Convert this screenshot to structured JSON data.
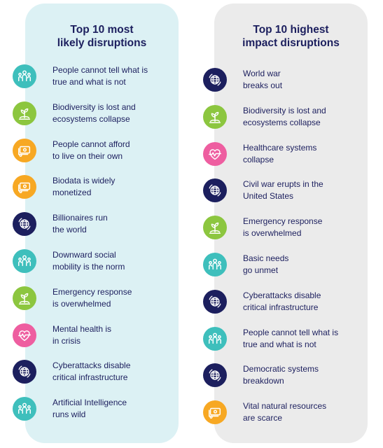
{
  "left": {
    "title_line1": "Top 10 most",
    "title_line2": "likely disruptions",
    "items": [
      {
        "line1": "People cannot tell what is",
        "line2": "true and what is not",
        "icon": "people-icon",
        "color": "#3ebfbc"
      },
      {
        "line1": "Biodiversity is lost and",
        "line2": "ecosystems collapse",
        "icon": "plant-icon",
        "color": "#8cc63f"
      },
      {
        "line1": "People cannot afford",
        "line2": "to live on their own",
        "icon": "money-icon",
        "color": "#f7a823"
      },
      {
        "line1": "Biodata is widely",
        "line2": "monetized",
        "icon": "money-icon",
        "color": "#f7a823"
      },
      {
        "line1": "Billionaires run",
        "line2": "the world",
        "icon": "globe-icon",
        "color": "#1c1f5e"
      },
      {
        "line1": "Downward social",
        "line2": "mobility is the norm",
        "icon": "people-icon",
        "color": "#3ebfbc"
      },
      {
        "line1": "Emergency response",
        "line2": "is overwhelmed",
        "icon": "plant-icon",
        "color": "#8cc63f"
      },
      {
        "line1": "Mental health is",
        "line2": "in crisis",
        "icon": "heart-icon",
        "color": "#ee5ea0"
      },
      {
        "line1": "Cyberattacks disable",
        "line2": "critical infrastructure",
        "icon": "globe-icon",
        "color": "#1c1f5e"
      },
      {
        "line1": "Artificial Intelligence",
        "line2": "runs wild",
        "icon": "people-icon",
        "color": "#3ebfbc"
      }
    ]
  },
  "right": {
    "title_line1": "Top 10 highest",
    "title_line2": "impact disruptions",
    "items": [
      {
        "line1": "World war",
        "line2": "breaks out",
        "icon": "globe-icon",
        "color": "#1c1f5e"
      },
      {
        "line1": "Biodiversity is lost and",
        "line2": "ecosystems collapse",
        "icon": "plant-icon",
        "color": "#8cc63f"
      },
      {
        "line1": "Healthcare systems",
        "line2": "collapse",
        "icon": "heart-icon",
        "color": "#ee5ea0"
      },
      {
        "line1": "Civil war erupts in the",
        "line2": "United States",
        "icon": "globe-icon",
        "color": "#1c1f5e"
      },
      {
        "line1": "Emergency response",
        "line2": "is overwhelmed",
        "icon": "plant-icon",
        "color": "#8cc63f"
      },
      {
        "line1": "Basic needs",
        "line2": "go unmet",
        "icon": "people-icon",
        "color": "#3ebfbc"
      },
      {
        "line1": "Cyberattacks disable",
        "line2": "critical infrastructure",
        "icon": "globe-icon",
        "color": "#1c1f5e"
      },
      {
        "line1": "People cannot tell what is",
        "line2": "true and what is not",
        "icon": "people-icon",
        "color": "#3ebfbc"
      },
      {
        "line1": "Democratic systems",
        "line2": "breakdown",
        "icon": "globe-icon",
        "color": "#1c1f5e"
      },
      {
        "line1": "Vital natural resources",
        "line2": "are scarce",
        "icon": "money-icon",
        "color": "#f7a823"
      }
    ]
  }
}
